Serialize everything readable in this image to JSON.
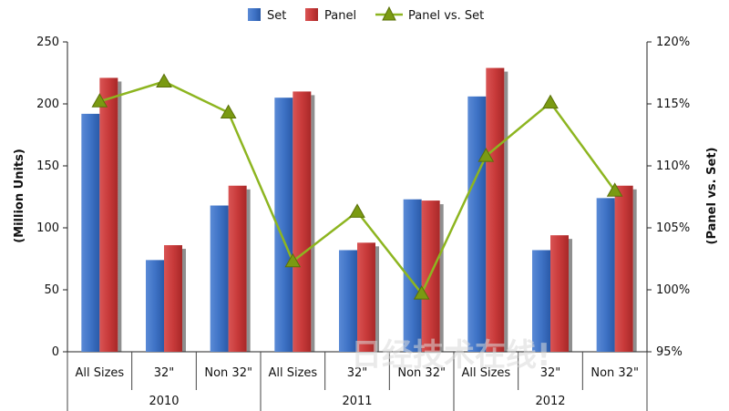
{
  "chart_data": {
    "type": "bar",
    "series": [
      {
        "name": "Set",
        "kind": "bar",
        "axis": "left",
        "color": "#3f73c6",
        "values": [
          192,
          74,
          118,
          205,
          82,
          123,
          206,
          82,
          124
        ]
      },
      {
        "name": "Panel",
        "kind": "bar",
        "axis": "left",
        "color": "#c83a3a",
        "values": [
          221,
          86,
          134,
          210,
          88,
          122,
          229,
          94,
          134
        ]
      },
      {
        "name": "Panel vs. Set",
        "kind": "line",
        "axis": "right",
        "color": "#8db520",
        "values": [
          115.2,
          116.8,
          114.3,
          102.3,
          106.3,
          99.7,
          110.8,
          115.1,
          108.0
        ]
      }
    ],
    "categories": [
      "All Sizes",
      "32\"",
      "Non 32\"",
      "All Sizes",
      "32\"",
      "Non 32\"",
      "All Sizes",
      "32\"",
      "Non 32\""
    ],
    "groups": [
      {
        "label": "2010",
        "count": 3
      },
      {
        "label": "2011",
        "count": 3
      },
      {
        "label": "2012",
        "count": 3
      }
    ],
    "ylabel": "(Million Units)",
    "y2label": "(Panel vs. Set)",
    "ylim": [
      0,
      250
    ],
    "yticks": [
      0,
      50,
      100,
      150,
      200,
      250
    ],
    "y2lim": [
      95,
      120
    ],
    "y2ticks": [
      "95%",
      "100%",
      "105%",
      "110%",
      "115%",
      "120%"
    ],
    "grid": false,
    "legend_position": "top-center"
  },
  "watermark": "日经技术在线!"
}
